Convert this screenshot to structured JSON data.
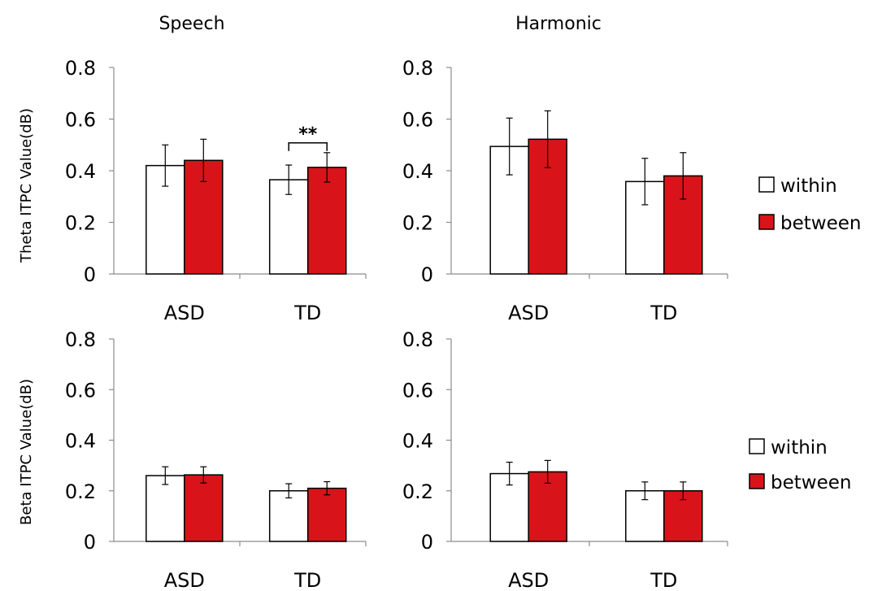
{
  "column_titles": [
    "Speech",
    "Harmonic"
  ],
  "row_labels": [
    "Theta ITPC Value(dB)",
    "Beta ITPC Value(dB)"
  ],
  "legend": {
    "items": [
      {
        "label": "within",
        "color": "#ffffff"
      },
      {
        "label": "between",
        "color": "#d8141a"
      }
    ]
  },
  "significance_label": "**",
  "chart_data": [
    {
      "type": "bar",
      "title": "Speech",
      "ylabel": "Theta ITPC Value(dB)",
      "ylim": [
        0,
        0.8
      ],
      "yticks": [
        "0",
        "0.2",
        "0.4",
        "0.6",
        "0.8"
      ],
      "categories": [
        "ASD",
        "TD"
      ],
      "series": [
        {
          "name": "within",
          "values": [
            0.42,
            0.365
          ],
          "errors": [
            0.08,
            0.057
          ]
        },
        {
          "name": "between",
          "values": [
            0.44,
            0.413
          ],
          "errors": [
            0.082,
            0.057
          ]
        }
      ],
      "annotation": {
        "text": "**",
        "category": "TD"
      }
    },
    {
      "type": "bar",
      "title": "Harmonic",
      "ylim": [
        0,
        0.8
      ],
      "yticks": [
        "0",
        "0.2",
        "0.4",
        "0.6",
        "0.8"
      ],
      "categories": [
        "ASD",
        "TD"
      ],
      "series": [
        {
          "name": "within",
          "values": [
            0.494,
            0.358
          ],
          "errors": [
            0.11,
            0.09
          ]
        },
        {
          "name": "between",
          "values": [
            0.522,
            0.38
          ],
          "errors": [
            0.11,
            0.09
          ]
        }
      ]
    },
    {
      "type": "bar",
      "ylabel": "Beta ITPC Value(dB)",
      "ylim": [
        0,
        0.8
      ],
      "yticks": [
        "0",
        "0.2",
        "0.4",
        "0.6",
        "0.8"
      ],
      "categories": [
        "ASD",
        "TD"
      ],
      "series": [
        {
          "name": "within",
          "values": [
            0.26,
            0.2
          ],
          "errors": [
            0.035,
            0.028
          ]
        },
        {
          "name": "between",
          "values": [
            0.263,
            0.21
          ],
          "errors": [
            0.032,
            0.026
          ]
        }
      ]
    },
    {
      "type": "bar",
      "ylim": [
        0,
        0.8
      ],
      "yticks": [
        "0",
        "0.2",
        "0.4",
        "0.6",
        "0.8"
      ],
      "categories": [
        "ASD",
        "TD"
      ],
      "series": [
        {
          "name": "within",
          "values": [
            0.268,
            0.2
          ],
          "errors": [
            0.045,
            0.035
          ]
        },
        {
          "name": "between",
          "values": [
            0.275,
            0.2
          ],
          "errors": [
            0.045,
            0.035
          ]
        }
      ]
    }
  ]
}
